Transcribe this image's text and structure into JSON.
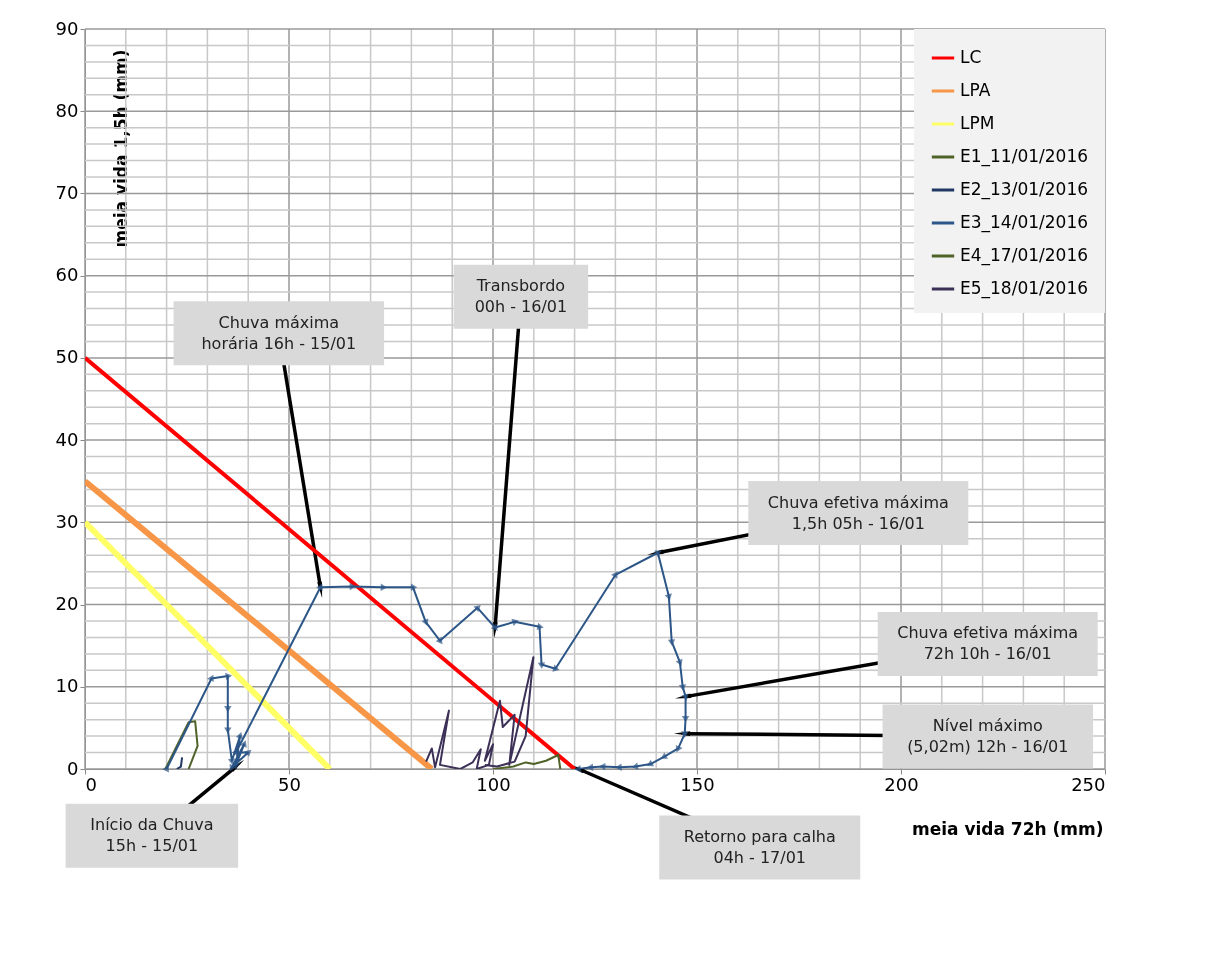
{
  "chart_data": {
    "type": "line",
    "xlabel": "meia vida 72h (mm)",
    "ylabel": "meia vida  1,5h (mm)",
    "xlim": [
      0,
      250
    ],
    "ylim": [
      0,
      90
    ],
    "xticks": [
      0,
      50,
      100,
      150,
      200,
      250
    ],
    "yticks": [
      0,
      10,
      20,
      30,
      40,
      50,
      60,
      70,
      80,
      90
    ],
    "grid": true,
    "legend": "top right",
    "series": [
      {
        "name": "LC",
        "color": "#ff0000",
        "x": [
          0,
          120
        ],
        "values": [
          50,
          0
        ]
      },
      {
        "name": "LPA",
        "color": "#f79646",
        "x": [
          0,
          85
        ],
        "values": [
          35,
          0
        ]
      },
      {
        "name": "LPM",
        "color": "#ffff66",
        "x": [
          0,
          60
        ],
        "values": [
          30,
          0
        ]
      },
      {
        "name": "E1_11/01/2016",
        "color": "#4f6228",
        "x": [
          19.7,
          25.4,
          27,
          27.6,
          25.4
        ],
        "values": [
          0,
          5.7,
          5.8,
          2.8,
          0
        ]
      },
      {
        "name": "E2_13/01/2016",
        "color": "#1f3864",
        "x": [
          22.5,
          23.5,
          23.8
        ],
        "values": [
          0,
          0.3,
          1.4
        ]
      },
      {
        "name": "E3_14/01/2016",
        "color": "#2c5687",
        "marker": "triangle",
        "x": [
          20,
          31,
          35,
          35,
          35,
          36,
          38,
          37,
          39,
          36,
          40,
          37,
          57.7,
          65.4,
          73,
          80.4,
          83.5,
          87,
          96.2,
          100.5,
          105.3,
          111.4,
          111.9,
          115.3,
          130,
          140.4,
          143.1,
          143.8,
          145.8,
          146.5,
          147.2,
          147.2,
          147,
          145.4,
          142,
          138.6,
          135,
          131,
          127,
          124,
          121
        ],
        "values": [
          0,
          11,
          11.3,
          7.4,
          4.8,
          1,
          4,
          0.5,
          3,
          0.2,
          2,
          2,
          22.1,
          22.2,
          22.1,
          22.1,
          17.9,
          15.6,
          19.6,
          17.2,
          17.9,
          17.3,
          12.7,
          12.2,
          23.6,
          26.3,
          21,
          15.5,
          13,
          10,
          8.8,
          6.2,
          4.3,
          2.5,
          1.5,
          0.6,
          0.3,
          0.2,
          0.3,
          0.2,
          0
        ]
      },
      {
        "name": "E4_17/01/2016",
        "color": "#4f6228",
        "x": [
          100,
          105,
          108,
          110,
          113,
          116,
          116.5
        ],
        "values": [
          0,
          0.3,
          0.8,
          0.6,
          1,
          1.7,
          0
        ]
      },
      {
        "name": "E5_18/01/2016",
        "color": "#3d3057",
        "x": [
          83.6,
          85,
          85.8,
          89.2,
          87,
          92,
          95,
          97,
          96,
          99,
          100,
          98,
          101.7,
          102.4,
          105.3,
          104,
          109.9,
          108,
          105.3,
          101,
          98
        ],
        "values": [
          0.9,
          2.5,
          0.2,
          7.1,
          0.5,
          0,
          0.8,
          2.4,
          0,
          0.5,
          3,
          1,
          8.3,
          5.1,
          6.6,
          0.5,
          13.6,
          4,
          0.9,
          0.3,
          0.5
        ]
      }
    ],
    "annotations": [
      {
        "text": "Chuva máxima\nhorária 16h - 15/01",
        "x": 57.7,
        "y": 22.1
      },
      {
        "text": "Transbordo\n00h - 16/01",
        "x": 100.5,
        "y": 17.2
      },
      {
        "text": "Chuva efetiva máxima\n1,5h 05h - 16/01",
        "x": 140.4,
        "y": 26.3
      },
      {
        "text": "Chuva efetiva máxima\n72h 10h - 16/01",
        "x": 147.2,
        "y": 8.8
      },
      {
        "text": "Nível máximo\n(5,02m) 12h - 16/01",
        "x": 147,
        "y": 4.3
      },
      {
        "text": "Início da Chuva\n15h - 15/01",
        "x": 37,
        "y": 0.3
      },
      {
        "text": "Retorno para calha\n04h - 17/01",
        "x": 121,
        "y": 0
      }
    ]
  }
}
